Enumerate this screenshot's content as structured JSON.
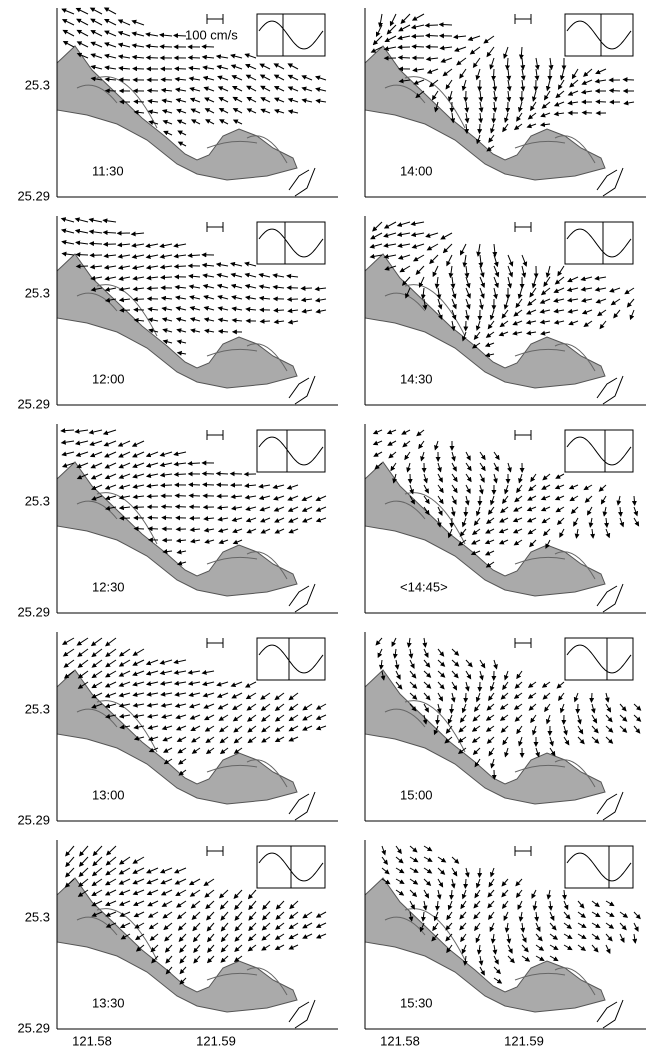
{
  "scale_label": "100 cm/s",
  "y_tick_labels": [
    "25.3",
    "25.29"
  ],
  "x_tick_labels": [
    "121.58",
    "121.59"
  ],
  "panels": [
    {
      "time": "11:30"
    },
    {
      "time": "12:00"
    },
    {
      "time": "12:30"
    },
    {
      "time": "13:00"
    },
    {
      "time": "13:30"
    },
    {
      "time": "14:00"
    },
    {
      "time": "14:30"
    },
    {
      "time": "<14:45>"
    },
    {
      "time": "15:00"
    },
    {
      "time": "15:30"
    }
  ]
}
